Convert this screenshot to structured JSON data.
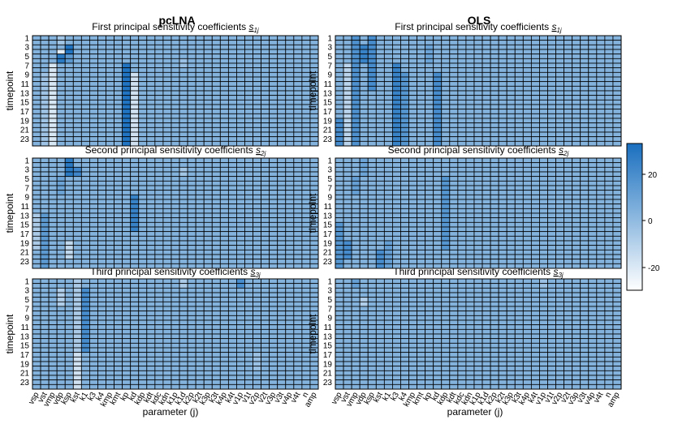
{
  "chart_data": {
    "type": "heatmap",
    "method_titles": [
      "pcLNA",
      "OLS"
    ],
    "row_titles": [
      {
        "label": "First principal sensitivity coefficients",
        "symbol": "s",
        "sub": "1j"
      },
      {
        "label": "Second principal sensitivity coefficients",
        "symbol": "s",
        "sub": "2j"
      },
      {
        "label": "Third principal sensitivity coefficients",
        "symbol": "s",
        "sub": "3j"
      }
    ],
    "ylabel": "timepoint",
    "xlabel": "parameter (j)",
    "timepoint_ticks": [
      "1",
      "3",
      "5",
      "7",
      "9",
      "11",
      "13",
      "15",
      "17",
      "19",
      "21",
      "23"
    ],
    "parameters": [
      "vsp",
      "vst",
      "vmp",
      "vdp",
      "ksp",
      "kst",
      "k1",
      "k3",
      "k4",
      "kmp",
      "kmt",
      "kp",
      "kd",
      "kdp",
      "kdt",
      "kdc",
      "kdn",
      "k1p",
      "k1d",
      "k2p",
      "k2t",
      "k3p",
      "k3t",
      "k4p",
      "k4t",
      "v1p",
      "v1t",
      "v2p",
      "v2t",
      "v3p",
      "v3t",
      "v4p",
      "v4t",
      "n",
      "amp"
    ],
    "colorbar": {
      "ticks": [
        20,
        0,
        -20
      ],
      "range": [
        -30,
        30
      ],
      "low_color": "#ffffff",
      "high_color": "#1a6fbf"
    },
    "base_value": 2,
    "panels": [
      {
        "method": "pcLNA",
        "component": 1,
        "notable_cells": [
          {
            "param": "vst",
            "rows": [
              9,
              10,
              11,
              12,
              13,
              14,
              15,
              16,
              17,
              18,
              19,
              20,
              21,
              22,
              23,
              24
            ],
            "value": -5
          },
          {
            "param": "vmp",
            "rows": [
              7,
              8,
              9,
              10,
              11,
              12,
              13,
              14,
              15,
              16,
              17,
              18,
              19,
              20,
              21,
              22,
              23,
              24
            ],
            "value": -20
          },
          {
            "param": "vdp",
            "rows": [
              1,
              2
            ],
            "value": -6
          },
          {
            "param": "vdp",
            "rows": [
              4
            ],
            "value": -22
          },
          {
            "param": "vdp",
            "rows": [
              5,
              6
            ],
            "value": 26
          },
          {
            "param": "ksp",
            "rows": [
              3,
              4
            ],
            "value": 28
          },
          {
            "param": "ksp",
            "rows": [
              5,
              6
            ],
            "value": 12
          },
          {
            "param": "kp",
            "rows": [
              7,
              8,
              9,
              10,
              11,
              12,
              13,
              14,
              15,
              16,
              17,
              18,
              19,
              20,
              21,
              22,
              23,
              24
            ],
            "value": 28
          },
          {
            "param": "kd",
            "rows": [
              9,
              10,
              11,
              12,
              13,
              14,
              15,
              16,
              17,
              18,
              19,
              20,
              21,
              22,
              23,
              24
            ],
            "value": -18
          },
          {
            "param": "k1d",
            "rows": [
              6,
              7
            ],
            "value": -4
          }
        ]
      },
      {
        "method": "OLS",
        "component": 1,
        "notable_cells": [
          {
            "param": "vsp",
            "rows": [
              19,
              20,
              21,
              22,
              23,
              24
            ],
            "value": 18
          },
          {
            "param": "vst",
            "rows": [
              7,
              8,
              9,
              10,
              11,
              12,
              13,
              14,
              15,
              16,
              17,
              18,
              19,
              20,
              21,
              22,
              23,
              24
            ],
            "value": -12
          },
          {
            "param": "vmp",
            "rows": [
              1,
              2,
              3,
              4,
              5,
              6,
              7,
              8,
              9,
              10,
              11,
              12,
              13,
              14,
              15,
              16,
              17,
              18,
              19,
              20,
              21,
              22,
              23,
              24
            ],
            "value": 16
          },
          {
            "param": "vdp",
            "rows": [
              3,
              4,
              5,
              6
            ],
            "value": 22
          },
          {
            "param": "ksp",
            "rows": [
              1,
              2,
              3,
              4,
              5,
              6,
              7,
              8,
              9,
              10,
              11,
              12
            ],
            "value": 18
          },
          {
            "param": "k3",
            "rows": [
              7,
              8,
              9,
              10,
              11,
              12,
              13,
              14,
              15,
              16,
              17,
              18,
              19,
              20,
              21,
              22,
              23,
              24
            ],
            "value": 22
          },
          {
            "param": "k4",
            "rows": [
              9,
              10,
              11,
              12,
              13,
              14,
              15,
              16,
              17,
              18,
              19,
              20,
              21,
              22,
              23,
              24
            ],
            "value": 14
          },
          {
            "param": "kd",
            "rows": [
              9,
              10,
              11,
              12,
              13,
              14,
              15,
              16,
              17,
              18,
              19,
              20,
              21,
              22,
              23,
              24
            ],
            "value": 18
          },
          {
            "param": "kp",
            "rows": [
              3,
              4,
              5,
              6
            ],
            "value": 8
          }
        ]
      },
      {
        "method": "pcLNA",
        "component": 2,
        "notable_cells": [
          {
            "param": "vsp",
            "rows": [
              13,
              14,
              15,
              16,
              17,
              18,
              19,
              20
            ],
            "value": -8
          },
          {
            "param": "vst",
            "rows": [
              13,
              14,
              15,
              16,
              17,
              18,
              19,
              20,
              21,
              22,
              23,
              24
            ],
            "value": 12
          },
          {
            "param": "vdp",
            "rows": [
              5,
              6,
              7,
              8
            ],
            "value": 8
          },
          {
            "param": "ksp",
            "rows": [
              1,
              2,
              3,
              4
            ],
            "value": 26
          },
          {
            "param": "ksp",
            "rows": [
              19,
              20,
              21,
              22
            ],
            "value": -14
          },
          {
            "param": "kst",
            "rows": [
              3,
              4
            ],
            "value": 20
          },
          {
            "param": "kd",
            "rows": [
              9,
              10,
              11,
              12,
              13,
              14,
              15,
              16
            ],
            "value": 22
          },
          {
            "param": "k1d",
            "rows": [
              3,
              4
            ],
            "value": -6
          }
        ]
      },
      {
        "method": "OLS",
        "component": 2,
        "notable_cells": [
          {
            "param": "vsp",
            "rows": [
              15,
              16,
              17,
              18,
              19,
              20,
              21,
              22,
              23,
              24
            ],
            "value": 14
          },
          {
            "param": "vst",
            "rows": [
              19,
              20,
              21,
              22
            ],
            "value": 18
          },
          {
            "param": "vmp",
            "rows": [
              5,
              6,
              7,
              8
            ],
            "value": 10
          },
          {
            "param": "vdp",
            "rows": [
              1,
              2,
              3,
              4
            ],
            "value": 8
          },
          {
            "param": "kst",
            "rows": [
              21,
              22,
              23,
              24
            ],
            "value": 18
          },
          {
            "param": "k1",
            "rows": [
              19,
              20,
              21,
              22,
              23,
              24
            ],
            "value": 10
          },
          {
            "param": "kdp",
            "rows": [
              5,
              6,
              7,
              8,
              9,
              10,
              11,
              12,
              13,
              14,
              15,
              16,
              17,
              18,
              19,
              20
            ],
            "value": 14
          }
        ]
      },
      {
        "method": "pcLNA",
        "component": 3,
        "notable_cells": [
          {
            "param": "vdp",
            "rows": [
              3,
              4,
              5,
              6
            ],
            "value": -10
          },
          {
            "param": "kst",
            "rows": [
              1,
              2,
              3,
              4,
              5,
              6,
              7,
              8,
              9,
              10,
              11,
              12,
              13,
              14,
              15,
              16,
              17,
              18,
              19,
              20,
              21,
              22
            ],
            "value": -8
          },
          {
            "param": "kst",
            "rows": [
              17,
              18,
              19,
              20,
              21,
              22,
              23,
              24
            ],
            "value": -18
          },
          {
            "param": "k1",
            "rows": [
              3,
              4,
              5,
              6,
              7,
              8,
              9,
              10,
              11,
              12,
              13,
              14,
              15,
              16
            ],
            "value": 18
          },
          {
            "param": "k1d",
            "rows": [
              1,
              2
            ],
            "value": -8
          },
          {
            "param": "v1p",
            "rows": [
              1,
              2
            ],
            "value": 18
          },
          {
            "param": "v2p",
            "rows": [
              17,
              18,
              19,
              20
            ],
            "value": -4
          }
        ]
      },
      {
        "method": "OLS",
        "component": 3,
        "notable_cells": [
          {
            "param": "vdp",
            "rows": [
              5,
              6
            ],
            "value": -10
          },
          {
            "param": "vmp",
            "rows": [
              1,
              2
            ],
            "value": 10
          },
          {
            "param": "v1p",
            "rows": [
              1,
              2
            ],
            "value": -4
          }
        ]
      }
    ]
  }
}
